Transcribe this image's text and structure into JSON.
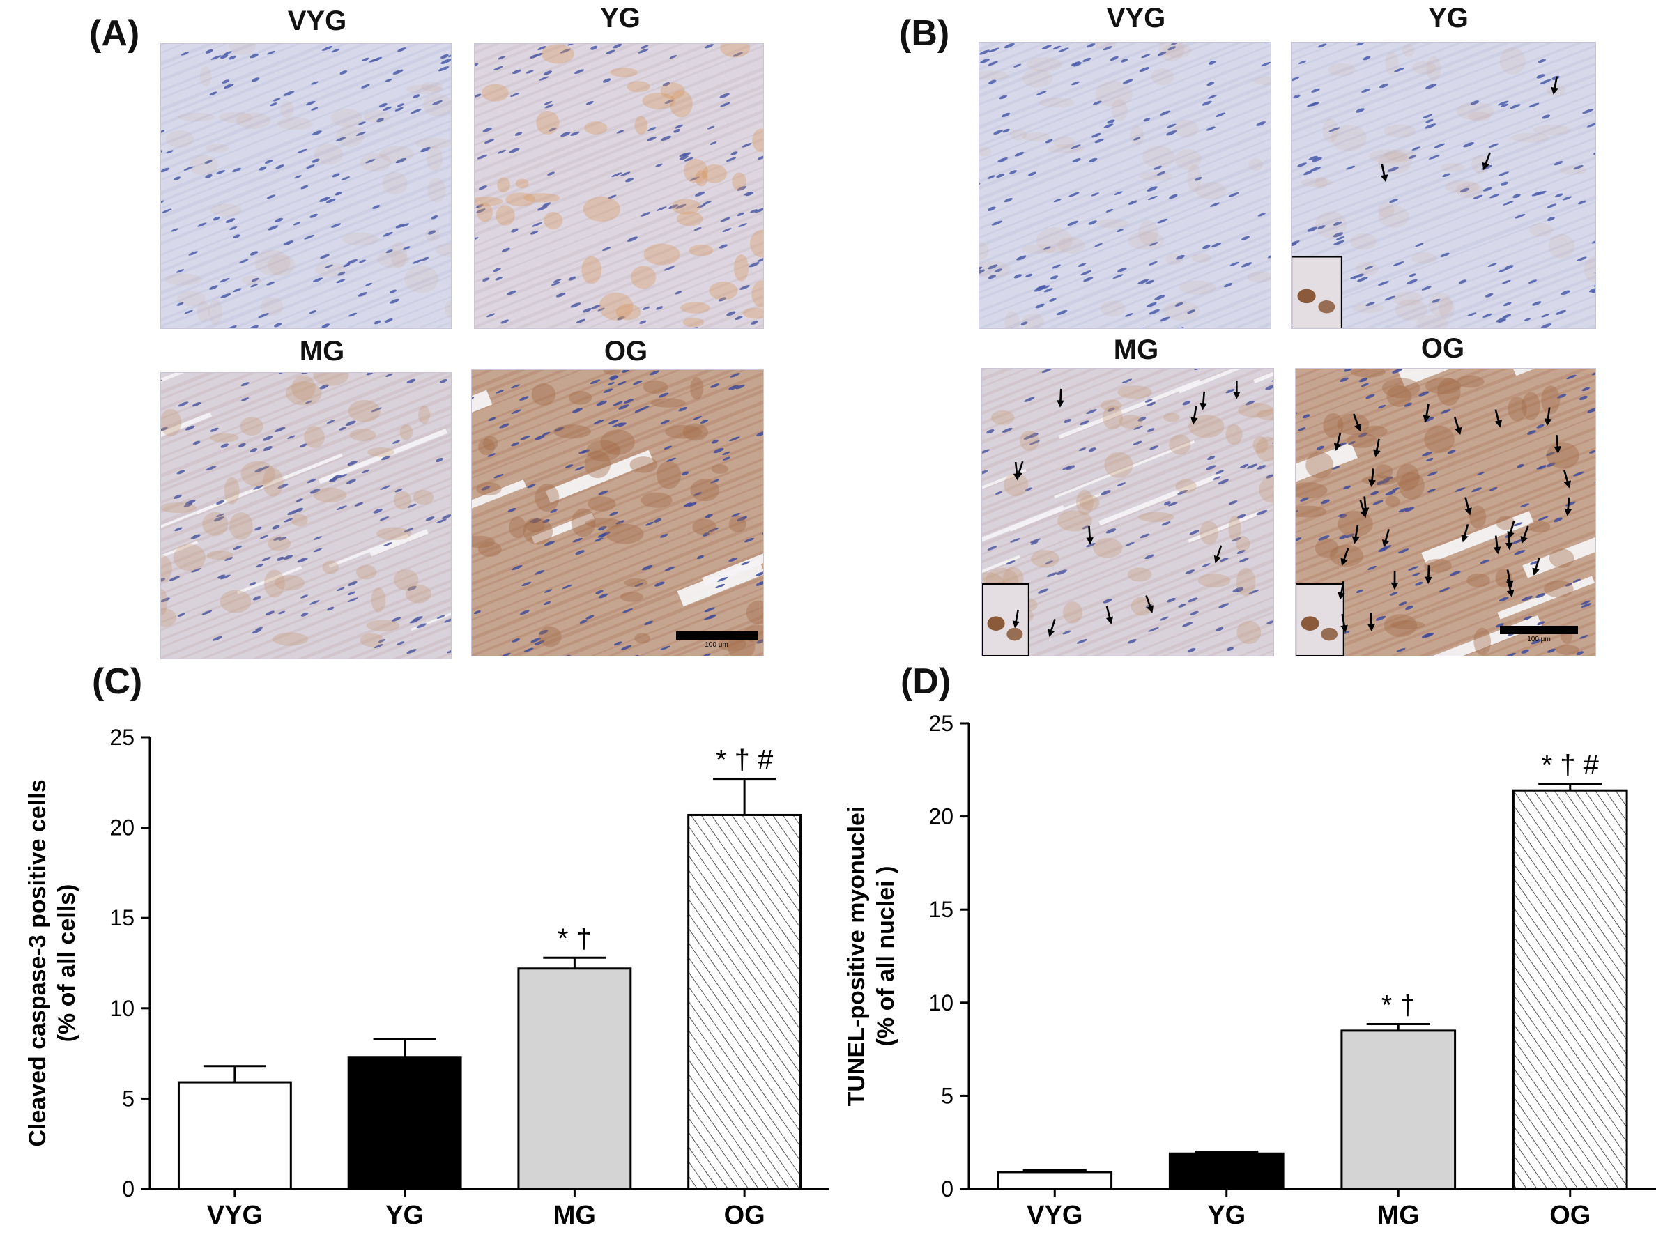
{
  "panels": {
    "a": {
      "label": "(A)",
      "images": [
        {
          "title": "VYG",
          "stain": "light",
          "arrows": 0,
          "inset": false
        },
        {
          "title": "YG",
          "stain": "light-brown",
          "arrows": 0,
          "inset": false
        },
        {
          "title": "MG",
          "stain": "medium",
          "arrows": 0,
          "inset": false
        },
        {
          "title": "OG",
          "stain": "dark",
          "arrows": 0,
          "inset": false
        }
      ],
      "scale_label": "100 μm"
    },
    "b": {
      "label": "(B)",
      "images": [
        {
          "title": "VYG",
          "stain": "light",
          "arrows": 0,
          "inset": false
        },
        {
          "title": "YG",
          "stain": "light",
          "arrows": 3,
          "inset": true
        },
        {
          "title": "MG",
          "stain": "medium",
          "arrows": 12,
          "inset": true
        },
        {
          "title": "OG",
          "stain": "dark",
          "arrows": 30,
          "inset": true
        }
      ],
      "scale_label": "100 μm"
    },
    "c": {
      "label": "(C)"
    },
    "d": {
      "label": "(D)"
    }
  },
  "chart_data": [
    {
      "type": "bar",
      "panel": "C",
      "categories": [
        "VYG",
        "YG",
        "MG",
        "OG"
      ],
      "values": [
        5.9,
        7.3,
        12.2,
        20.7
      ],
      "errors": [
        0.9,
        1.0,
        0.6,
        2.0
      ],
      "annotations": [
        "",
        "",
        "* †",
        "* † #"
      ],
      "bar_fills": [
        "white",
        "black",
        "lightgray",
        "hatched"
      ],
      "ylabel": "Cleaved caspase-3 positive cells",
      "ylabel2": "(% of all cells)",
      "ylim": [
        0,
        25
      ],
      "yticks": [
        0,
        5,
        10,
        15,
        20,
        25
      ]
    },
    {
      "type": "bar",
      "panel": "D",
      "categories": [
        "VYG",
        "YG",
        "MG",
        "OG"
      ],
      "values": [
        0.9,
        1.9,
        8.5,
        21.4
      ],
      "errors": [
        0.1,
        0.1,
        0.35,
        0.35
      ],
      "annotations": [
        "",
        "",
        "* †",
        "* † #"
      ],
      "bar_fills": [
        "white",
        "black",
        "lightgray",
        "hatched"
      ],
      "ylabel": "TUNEL-positive myonuclei",
      "ylabel2": "(% of all nuclei )",
      "ylim": [
        0,
        25
      ],
      "yticks": [
        0,
        5,
        10,
        15,
        20,
        25
      ]
    }
  ]
}
